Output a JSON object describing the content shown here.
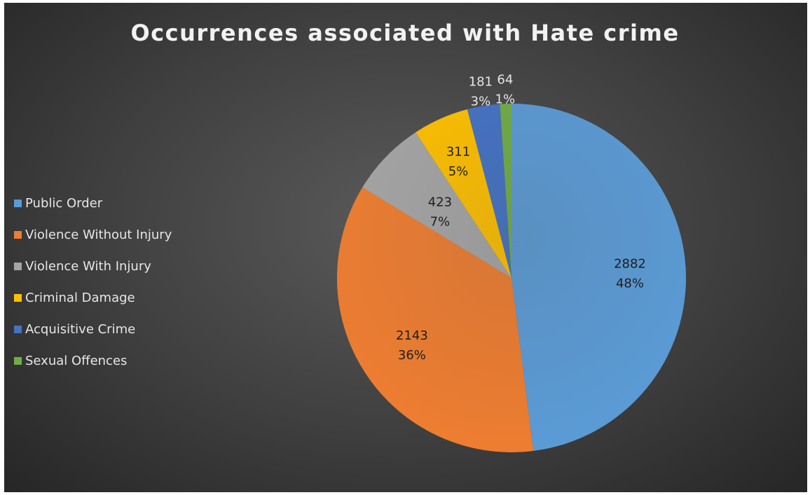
{
  "chart_data": {
    "type": "pie",
    "title": "Occurrences associated with Hate crime",
    "legend_position": "left",
    "categories": [
      "Public Order",
      "Violence Without Injury",
      "Violence With Injury",
      "Criminal Damage",
      "Acquisitive Crime",
      "Sexual Offences"
    ],
    "values": [
      2882,
      2143,
      423,
      311,
      181,
      64
    ],
    "percent_labels": [
      "48%",
      "36%",
      "7%",
      "5%",
      "3%",
      "1%"
    ],
    "colors": [
      "#5b9bd5",
      "#ed7d31",
      "#a5a5a5",
      "#ffc000",
      "#4472c4",
      "#70ad47"
    ]
  }
}
